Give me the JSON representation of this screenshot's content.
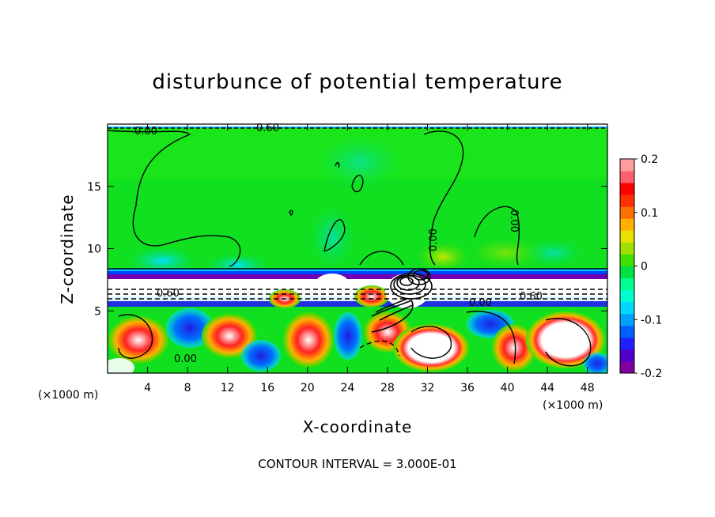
{
  "chart_data": {
    "type": "heatmap",
    "title": "disturbunce of potential temperature",
    "xlabel": "X-coordinate",
    "ylabel": "Z-coordinate",
    "x_unit": "(×1000 m)",
    "z_unit": "(×1000 m)",
    "xlim": [
      0,
      50
    ],
    "ylim": [
      0,
      20
    ],
    "xticks": [
      4,
      8,
      12,
      16,
      20,
      24,
      28,
      32,
      36,
      40,
      44,
      48
    ],
    "yticks": [
      5,
      10,
      15
    ],
    "colorbar": {
      "range": [
        -0.2,
        0.2
      ],
      "ticks": [
        0.2,
        0.1,
        0,
        -0.1,
        -0.2
      ],
      "tick_labels": [
        "0.2",
        "0.1",
        "0",
        "-0.1",
        "-0.2"
      ],
      "colors": [
        "#8000a0",
        "#5000c8",
        "#2020ff",
        "#0060ff",
        "#00a0ff",
        "#00d8ff",
        "#00ffd0",
        "#00ff90",
        "#00e040",
        "#40e000",
        "#a0e000",
        "#e8e000",
        "#ffb000",
        "#ff7000",
        "#ff3000",
        "#ff0000",
        "#ff6070",
        "#ff9ca0"
      ]
    },
    "contour_labels": [
      "0.00",
      "0.60"
    ],
    "contour_interval": "CONTOUR INTERVAL = 3.000E-01"
  }
}
